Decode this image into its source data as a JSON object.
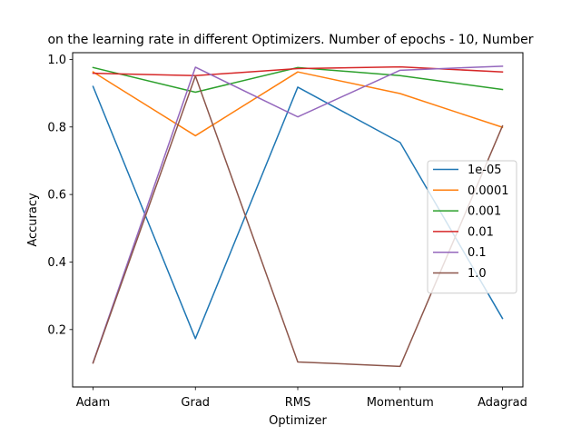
{
  "chart_data": {
    "type": "line",
    "title": "on the learning rate in different Optimizers. Number of epochs - 10, Number",
    "xlabel": "Optimizer",
    "ylabel": "Accuracy",
    "categories": [
      "Adam",
      "Grad",
      "RMS",
      "Momentum",
      "Adagrad"
    ],
    "ylim": [
      0.03,
      1.02
    ],
    "yticks": [
      0.2,
      0.4,
      0.6,
      0.8,
      1.0
    ],
    "ytick_labels": [
      "0.2",
      "0.4",
      "0.6",
      "0.8",
      "1.0"
    ],
    "grid": false,
    "legend_position": "center-right",
    "series": [
      {
        "name": "1e-05",
        "color": "#1f77b4",
        "values": [
          0.92,
          0.173,
          0.918,
          0.754,
          0.233
        ]
      },
      {
        "name": "0.0001",
        "color": "#ff7f0e",
        "values": [
          0.963,
          0.774,
          0.963,
          0.899,
          0.799
        ]
      },
      {
        "name": "0.001",
        "color": "#2ca02c",
        "values": [
          0.976,
          0.903,
          0.976,
          0.952,
          0.911
        ]
      },
      {
        "name": "0.01",
        "color": "#d62728",
        "values": [
          0.959,
          0.952,
          0.973,
          0.978,
          0.963
        ]
      },
      {
        "name": "0.1",
        "color": "#9467bd",
        "values": [
          0.102,
          0.977,
          0.83,
          0.968,
          0.98
        ]
      },
      {
        "name": "1.0",
        "color": "#8c564b",
        "values": [
          0.101,
          0.951,
          0.104,
          0.091,
          0.803
        ]
      }
    ]
  }
}
